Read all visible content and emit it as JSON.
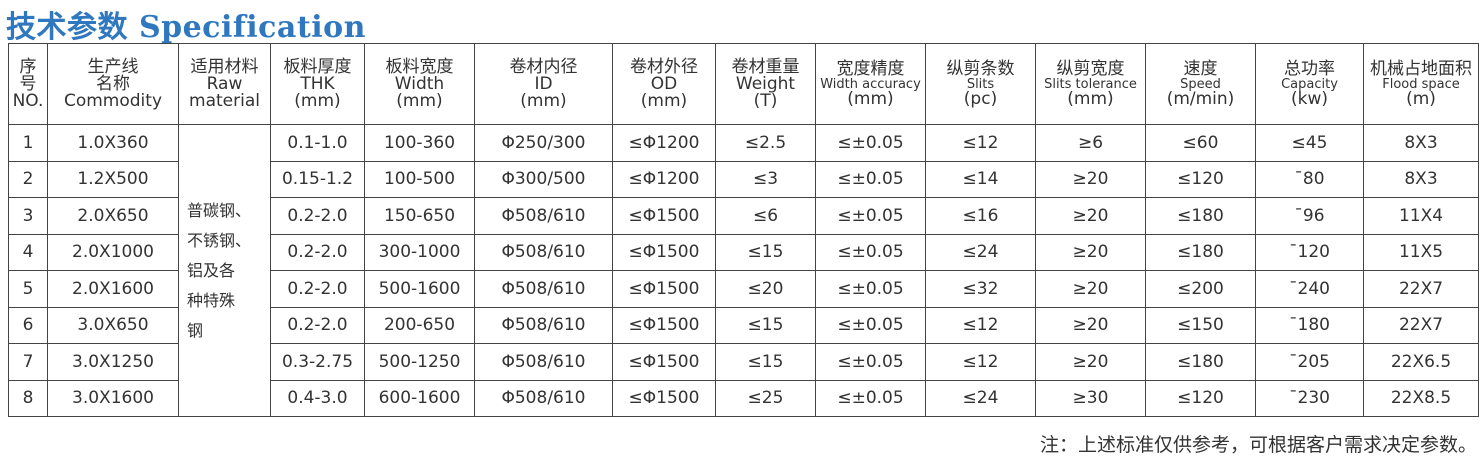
{
  "title": "技术参数 Specification",
  "headers": [
    [
      "序",
      "号",
      "NO."
    ],
    [
      "生产线",
      "名称",
      "Commodity"
    ],
    [
      "适用材料",
      "Raw",
      "material"
    ],
    [
      "板料厚度",
      "THK",
      "(mm)"
    ],
    [
      "板料宽度",
      "Width",
      "(mm)"
    ],
    [
      "卷材内径",
      "ID",
      "(mm)"
    ],
    [
      "卷材外径",
      "OD",
      "(mm)"
    ],
    [
      "卷材重量",
      "Weight",
      "(T)"
    ],
    [
      "宽度精度",
      "Width accuracy",
      "(mm)"
    ],
    [
      "纵剪条数",
      "Slits",
      "(pc)"
    ],
    [
      "纵剪宽度",
      "Slits tolerance",
      "(mm)"
    ],
    [
      "速度",
      "Speed",
      "(m/min)"
    ],
    [
      "总功率",
      "Capacity",
      "(kw)"
    ],
    [
      "机械占地面积",
      "Flood space",
      "(m)"
    ]
  ],
  "raw_material": [
    "普碳钢、",
    "不锈钢、",
    "铝及各",
    "种特殊",
    "钢"
  ],
  "rows": [
    [
      "1",
      "1.0X360",
      "0.1-1.0",
      "100-360",
      "Φ250/300",
      "≤Φ1200",
      "≤2.5",
      "≤±0.05",
      "≤12",
      "≥6",
      "≤60",
      "≤45",
      "8X3"
    ],
    [
      "2",
      "1.2X500",
      "0.15-1.2",
      "100-500",
      "Φ300/500",
      "≤Φ1200",
      "≤3",
      "≤±0.05",
      "≤14",
      "≥20",
      "≤120",
      "¯80",
      "8X3"
    ],
    [
      "3",
      "2.0X650",
      "0.2-2.0",
      "150-650",
      "Φ508/610",
      "≤Φ1500",
      "≤6",
      "≤±0.05",
      "≤16",
      "≥20",
      "≤180",
      "¯96",
      "11X4"
    ],
    [
      "4",
      "2.0X1000",
      "0.2-2.0",
      "300-1000",
      "Φ508/610",
      "≤Φ1500",
      "≤15",
      "≤±0.05",
      "≤24",
      "≥20",
      "≤180",
      "¯120",
      "11X5"
    ],
    [
      "5",
      "2.0X1600",
      "0.2-2.0",
      "500-1600",
      "Φ508/610",
      "≤Φ1500",
      "≤20",
      "≤±0.05",
      "≤32",
      "≥20",
      "≤200",
      "¯240",
      "22X7"
    ],
    [
      "6",
      "3.0X650",
      "0.2-2.0",
      "200-650",
      "Φ508/610",
      "≤Φ1500",
      "≤15",
      "≤±0.05",
      "≤12",
      "≥20",
      "≤150",
      "¯180",
      "22X7"
    ],
    [
      "7",
      "3.0X1250",
      "0.3-2.75",
      "500-1250",
      "Φ508/610",
      "≤Φ1500",
      "≤15",
      "≤±0.05",
      "≤12",
      "≥20",
      "≤180",
      "¯205",
      "22X6.5"
    ],
    [
      "8",
      "3.0X1600",
      "0.4-3.0",
      "600-1600",
      "Φ508/610",
      "≤Φ1500",
      "≤25",
      "≤±0.05",
      "≤24",
      "≥30",
      "≤120",
      "¯230",
      "22X8.5"
    ]
  ],
  "note": "注：上述标准仅供参考，可根据客户需求决定参数。",
  "colors": {
    "title": "#2f78c0",
    "border": "#444444"
  }
}
